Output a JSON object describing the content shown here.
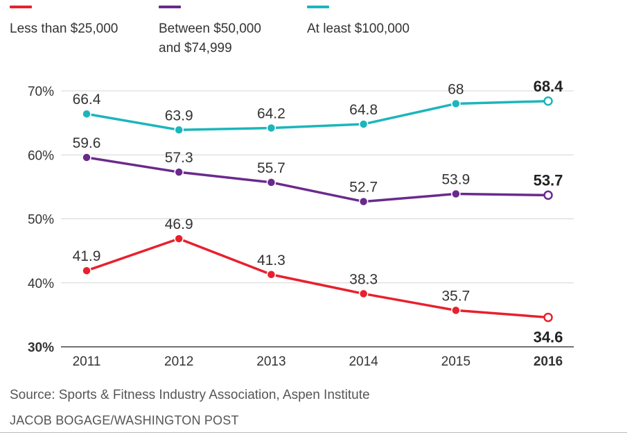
{
  "legend": [
    {
      "label": "Less than $25,000",
      "color": "#e8202d"
    },
    {
      "label": "Between $50,000\nand $74,999",
      "color": "#6a2a8c"
    },
    {
      "label": "At least $100,000",
      "color": "#1bb6bb"
    }
  ],
  "chart_data": {
    "type": "line",
    "x": [
      "2011",
      "2012",
      "2013",
      "2014",
      "2015",
      "2016"
    ],
    "series": [
      {
        "name": "At least $100,000",
        "color": "#1bb6bb",
        "values": [
          66.4,
          63.9,
          64.2,
          64.8,
          68,
          68.4
        ]
      },
      {
        "name": "Between $50,000 and $74,999",
        "color": "#6a2a8c",
        "values": [
          59.6,
          57.3,
          55.7,
          52.7,
          53.9,
          53.7
        ]
      },
      {
        "name": "Less than $25,000",
        "color": "#e8202d",
        "values": [
          41.9,
          46.9,
          41.3,
          38.3,
          35.7,
          34.6
        ]
      }
    ],
    "data_labels": [
      [
        "66.4",
        "63.9",
        "64.2",
        "64.8",
        "68",
        "68.4"
      ],
      [
        "59.6",
        "57.3",
        "55.7",
        "52.7",
        "53.9",
        "53.7"
      ],
      [
        "41.9",
        "46.9",
        "41.3",
        "38.3",
        "35.7",
        "34.6"
      ]
    ],
    "yticks": [
      30,
      40,
      50,
      60,
      70
    ],
    "ytick_labels": [
      "30%",
      "40%",
      "50%",
      "60%",
      "70%"
    ],
    "ylim": [
      30,
      70
    ],
    "grid": true,
    "last_point_hollow": true
  },
  "source": "Source: Sports & Fitness Industry Association, Aspen Institute",
  "credit": "JACOB BOGAGE/WASHINGTON POST"
}
